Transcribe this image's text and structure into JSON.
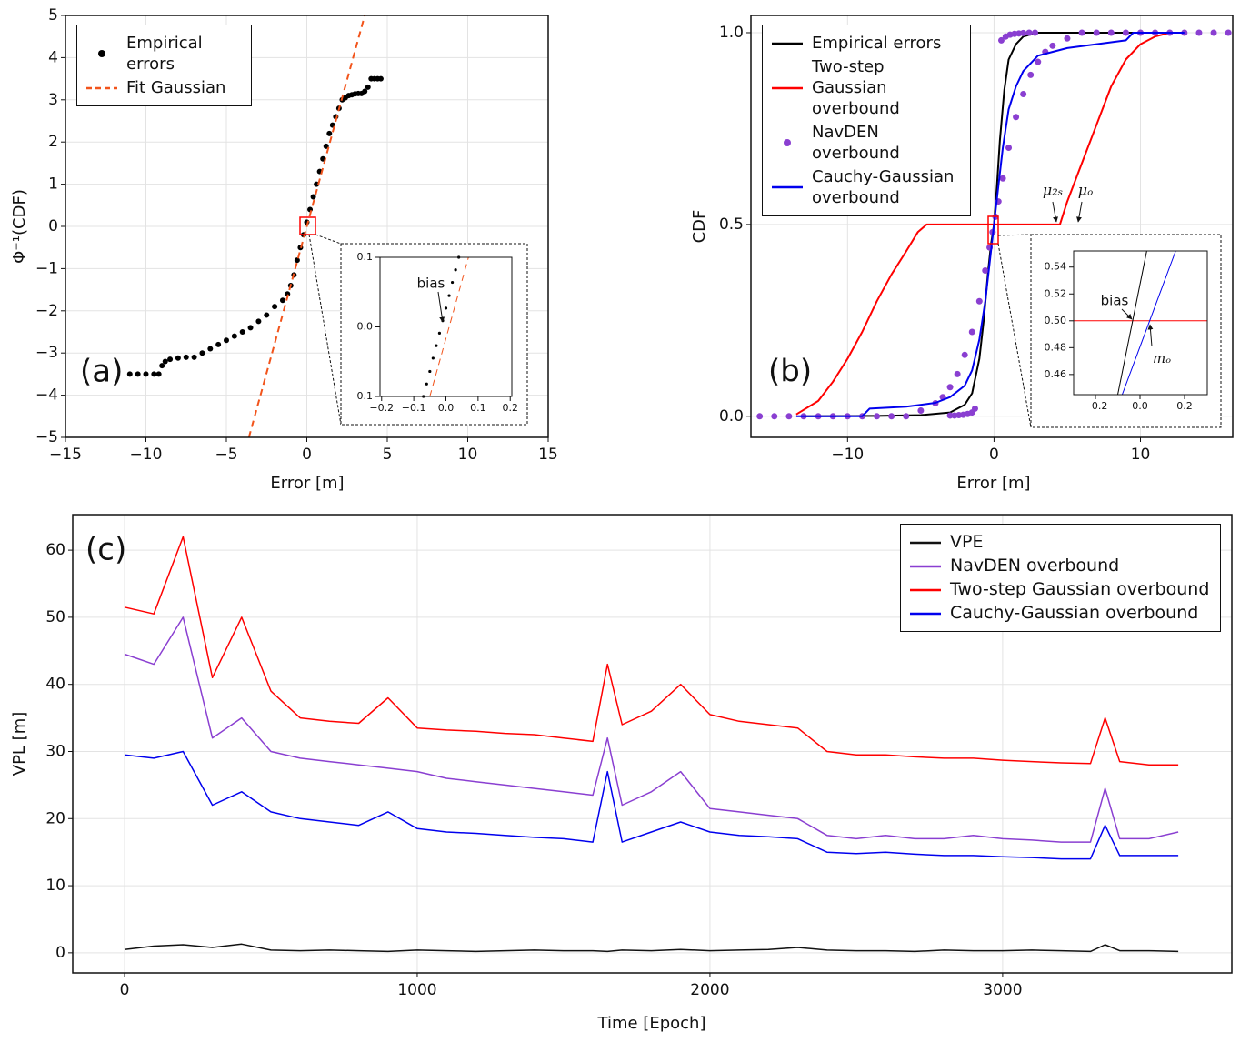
{
  "chart_data": [
    {
      "type": "scatter",
      "panel_label": "(a)",
      "xlabel": "Error [m]",
      "ylabel": "Φ⁻¹(CDF)",
      "xlim": [
        -15,
        15
      ],
      "ylim": [
        -5,
        5
      ],
      "xticks": [
        {
          "value": -15,
          "label": "−15"
        },
        {
          "value": -10,
          "label": "−10"
        },
        {
          "value": -5,
          "label": "−5"
        },
        0,
        5,
        10,
        15
      ],
      "yticks": [
        {
          "value": -5,
          "label": "−5"
        },
        {
          "value": -4,
          "label": "−4"
        },
        {
          "value": -3,
          "label": "−3"
        },
        {
          "value": -2,
          "label": "−2"
        },
        {
          "value": -1,
          "label": "−1"
        },
        0,
        1,
        2,
        3,
        4,
        5
      ],
      "grid": true,
      "legend": "upper left",
      "series": [
        {
          "name": "Empirical errors",
          "color": "#000000",
          "style": "dots",
          "x": [
            -11,
            -10.5,
            -10,
            -9.5,
            -9.2,
            -9,
            -8.8,
            -8.5,
            -8,
            -7.5,
            -7,
            -6.5,
            -6,
            -5.5,
            -5,
            -4.5,
            -4,
            -3.5,
            -3,
            -2.5,
            -2,
            -1.5,
            -1.2,
            -1,
            -0.8,
            -0.6,
            -0.4,
            -0.2,
            0,
            0.2,
            0.4,
            0.6,
            0.8,
            1,
            1.2,
            1.4,
            1.6,
            1.8,
            2,
            2.2,
            2.4,
            2.6,
            2.8,
            3,
            3.2,
            3.4,
            3.6,
            3.8,
            4,
            4.2,
            4.4,
            4.6
          ],
          "values": [
            -3.5,
            -3.5,
            -3.5,
            -3.5,
            -3.5,
            -3.3,
            -3.2,
            -3.15,
            -3.12,
            -3.1,
            -3.1,
            -3.0,
            -2.9,
            -2.8,
            -2.7,
            -2.6,
            -2.5,
            -2.4,
            -2.25,
            -2.1,
            -1.9,
            -1.75,
            -1.6,
            -1.4,
            -1.15,
            -0.8,
            -0.5,
            -0.2,
            0.1,
            0.4,
            0.7,
            1.0,
            1.3,
            1.6,
            1.9,
            2.2,
            2.4,
            2.6,
            2.8,
            3.0,
            3.05,
            3.1,
            3.12,
            3.14,
            3.15,
            3.15,
            3.2,
            3.3,
            3.5,
            3.5,
            3.5,
            3.5
          ]
        },
        {
          "name": "Fit Gaussian",
          "color": "#f2541b",
          "style": "dashed",
          "x": [
            -3.6,
            3.6
          ],
          "values": [
            -5,
            5
          ]
        }
      ],
      "inset": {
        "xlim": [
          -0.205,
          0.205
        ],
        "ylim": [
          -0.1,
          0.1
        ],
        "xticks": [
          {
            "value": -0.2,
            "label": "−0.2"
          },
          {
            "value": -0.1,
            "label": "−0.1"
          },
          {
            "value": 0,
            "label": "0.0"
          },
          0.1,
          0.2
        ],
        "yticks": [
          {
            "value": -0.1,
            "label": "−0.1"
          },
          {
            "value": 0,
            "label": "0.0"
          },
          0.1
        ],
        "annotations": [
          "bias"
        ],
        "series": [
          {
            "color": "#000000",
            "style": "dots",
            "x": [
              -0.07,
              -0.06,
              -0.05,
              -0.04,
              -0.03,
              -0.02,
              -0.01,
              0,
              0.01,
              0.02,
              0.03,
              0.04
            ],
            "values": [
              -0.1,
              -0.082,
              -0.064,
              -0.045,
              -0.027,
              -0.009,
              0.009,
              0.027,
              0.045,
              0.064,
              0.082,
              0.1
            ]
          },
          {
            "color": "#f2541b",
            "style": "dashed",
            "x": [
              -0.05,
              0.07
            ],
            "values": [
              -0.1,
              0.1
            ]
          }
        ]
      }
    },
    {
      "type": "line",
      "panel_label": "(b)",
      "xlabel": "Error [m]",
      "ylabel": "CDF",
      "xlim": [
        -16.6,
        16.3
      ],
      "ylim": [
        -0.055,
        1.045
      ],
      "xticks": [
        {
          "value": -10,
          "label": "−10"
        },
        0,
        10
      ],
      "yticks": [
        {
          "value": 0,
          "label": "0.0"
        },
        0.5,
        {
          "value": 1,
          "label": "1.0"
        }
      ],
      "grid": true,
      "legend": "upper left",
      "annotations": [
        "μ₂ₛ",
        "μₒ"
      ],
      "series": [
        {
          "name": "Empirical errors",
          "color": "#000000",
          "style": "solid",
          "x": [
            -13,
            -8,
            -5,
            -3,
            -2,
            -1.5,
            -1,
            -0.7,
            -0.4,
            -0.2,
            0,
            0.2,
            0.4,
            0.7,
            1,
            1.5,
            2,
            3,
            5,
            13
          ],
          "values": [
            0,
            0.001,
            0.003,
            0.01,
            0.03,
            0.06,
            0.15,
            0.25,
            0.38,
            0.45,
            0.5,
            0.6,
            0.72,
            0.85,
            0.93,
            0.97,
            0.99,
            1,
            1,
            1
          ]
        },
        {
          "name": "Two-step Gaussian overbound",
          "color": "#ff0000",
          "style": "solid",
          "x": [
            -13.5,
            -12,
            -11,
            -10,
            -9,
            -8,
            -7,
            -6,
            -5.2,
            -4.6,
            4.5,
            5,
            6,
            7,
            8,
            9,
            10,
            11,
            12,
            13
          ],
          "values": [
            0.005,
            0.04,
            0.09,
            0.15,
            0.22,
            0.3,
            0.37,
            0.43,
            0.48,
            0.5,
            0.5,
            0.56,
            0.66,
            0.76,
            0.86,
            0.93,
            0.97,
            0.99,
            1,
            1
          ]
        },
        {
          "name": "NavDEN overbound",
          "color": "#8a3fd1",
          "style": "dots",
          "x": [
            -16,
            -15,
            -14,
            -13,
            -12,
            -11,
            -10,
            -9,
            -8,
            -7,
            -6,
            -5,
            -4,
            -3.5,
            -3,
            -2.5,
            -2,
            -1.5,
            -1,
            -0.6,
            -0.3,
            -0.1,
            0.1,
            0.3,
            0.6,
            1,
            1.5,
            2,
            2.5,
            3,
            3.5,
            4,
            5,
            -3,
            -2.7,
            -2.4,
            -2.1,
            -1.8,
            -1.5,
            -1.3,
            0.5,
            0.8,
            1.1,
            1.4,
            1.7,
            2,
            2.4,
            2.8,
            6,
            7,
            8,
            9,
            10,
            11,
            12,
            13,
            14,
            15,
            16
          ],
          "values": [
            0,
            0,
            0,
            0,
            0,
            0,
            0,
            0,
            0,
            0,
            0,
            0.015,
            0.034,
            0.05,
            0.076,
            0.11,
            0.16,
            0.22,
            0.3,
            0.38,
            0.44,
            0.48,
            0.52,
            0.56,
            0.62,
            0.7,
            0.78,
            0.84,
            0.89,
            0.924,
            0.95,
            0.966,
            0.985,
            0.002,
            0.002,
            0.003,
            0.004,
            0.006,
            0.01,
            0.02,
            0.98,
            0.99,
            0.995,
            0.997,
            0.998,
            0.999,
            1,
            1,
            1,
            1,
            1,
            1,
            1,
            1,
            1,
            1,
            1,
            1,
            1
          ]
        },
        {
          "name": "Cauchy-Gaussian overbound",
          "color": "#0000ee",
          "style": "solid",
          "x": [
            -13.5,
            -9,
            -8.5,
            -6,
            -4,
            -3,
            -2,
            -1.5,
            -1,
            -0.6,
            -0.3,
            0,
            0.3,
            0.6,
            1,
            1.5,
            2,
            3,
            5,
            8,
            9,
            9.5,
            13
          ],
          "values": [
            0,
            0,
            0.02,
            0.025,
            0.035,
            0.05,
            0.08,
            0.12,
            0.2,
            0.3,
            0.4,
            0.5,
            0.6,
            0.7,
            0.8,
            0.86,
            0.9,
            0.94,
            0.96,
            0.975,
            0.98,
            1,
            1
          ]
        }
      ],
      "inset": {
        "xlim": [
          -0.298,
          0.302
        ],
        "ylim": [
          0.445,
          0.552
        ],
        "xticks": [
          {
            "value": -0.2,
            "label": "−0.2"
          },
          {
            "value": 0,
            "label": "0.0"
          },
          0.2
        ],
        "yticks": [
          0.46,
          0.48,
          {
            "value": 0.5,
            "label": "0.50"
          },
          0.52,
          0.54
        ],
        "annotations": [
          "bias",
          "mₒ"
        ],
        "series": [
          {
            "color": "#ff0000",
            "style": "solid",
            "x": [
              -0.298,
              0.302
            ],
            "values": [
              0.5,
              0.5
            ]
          },
          {
            "color": "#000000",
            "style": "solid",
            "x": [
              -0.1,
              0.03
            ],
            "values": [
              0.445,
              0.552
            ]
          },
          {
            "color": "#0000ee",
            "style": "solid",
            "x": [
              -0.08,
              0.16
            ],
            "values": [
              0.445,
              0.552
            ]
          }
        ]
      }
    },
    {
      "type": "line",
      "panel_label": "(c)",
      "xlabel": "Time [Epoch]",
      "ylabel": "VPL [m]",
      "xlim": [
        -177,
        3783
      ],
      "ylim": [
        -3,
        65.3
      ],
      "xticks": [
        0,
        1000,
        2000,
        3000
      ],
      "yticks": [
        0,
        10,
        20,
        30,
        40,
        50,
        60
      ],
      "grid": true,
      "legend": "upper right",
      "x": [
        0,
        100,
        200,
        300,
        400,
        500,
        600,
        700,
        800,
        900,
        1000,
        1100,
        1200,
        1300,
        1400,
        1500,
        1600,
        1650,
        1700,
        1800,
        1900,
        2000,
        2100,
        2200,
        2300,
        2400,
        2500,
        2600,
        2700,
        2800,
        2900,
        3000,
        3100,
        3200,
        3300,
        3350,
        3400,
        3500,
        3600
      ],
      "series": [
        {
          "name": "VPE",
          "color": "#111111",
          "style": "solid",
          "values": [
            0.5,
            1.0,
            1.2,
            0.8,
            1.3,
            0.4,
            0.3,
            0.4,
            0.3,
            0.2,
            0.4,
            0.3,
            0.2,
            0.3,
            0.4,
            0.3,
            0.3,
            0.2,
            0.4,
            0.3,
            0.5,
            0.3,
            0.4,
            0.5,
            0.8,
            0.4,
            0.3,
            0.3,
            0.2,
            0.4,
            0.3,
            0.3,
            0.4,
            0.3,
            0.2,
            1.2,
            0.3,
            0.3,
            0.2
          ]
        },
        {
          "name": "NavDEN overbound",
          "color": "#8a3fd1",
          "style": "solid",
          "values": [
            44.5,
            43,
            50,
            32,
            35,
            30,
            29,
            28.5,
            28,
            27.5,
            27,
            26,
            25.5,
            25,
            24.5,
            24,
            23.5,
            32,
            22,
            24,
            27,
            21.5,
            21,
            20.5,
            20,
            17.5,
            17,
            17.5,
            17,
            17,
            17.5,
            17,
            16.8,
            16.5,
            16.5,
            24.5,
            17,
            17,
            18
          ]
        },
        {
          "name": "Two-step Gaussian overbound",
          "color": "#ff0000",
          "style": "solid",
          "values": [
            51.5,
            50.5,
            62,
            41,
            50,
            39,
            35,
            34.5,
            34.2,
            38,
            33.5,
            33.2,
            33,
            32.7,
            32.5,
            32,
            31.5,
            43,
            34,
            36,
            40,
            35.5,
            34.5,
            34,
            33.5,
            30,
            29.5,
            29.5,
            29.2,
            29,
            29,
            28.7,
            28.5,
            28.3,
            28.2,
            35,
            28.5,
            28,
            28
          ]
        },
        {
          "name": "Cauchy-Gaussian overbound",
          "color": "#0000ee",
          "style": "solid",
          "values": [
            29.5,
            29,
            30,
            22,
            24,
            21,
            20,
            19.5,
            19,
            21,
            18.5,
            18,
            17.8,
            17.5,
            17.2,
            17,
            16.5,
            27,
            16.5,
            18,
            19.5,
            18,
            17.5,
            17.3,
            17,
            15,
            14.8,
            15,
            14.7,
            14.5,
            14.5,
            14.3,
            14.2,
            14,
            14,
            19,
            14.5,
            14.5,
            14.5
          ]
        }
      ]
    }
  ]
}
